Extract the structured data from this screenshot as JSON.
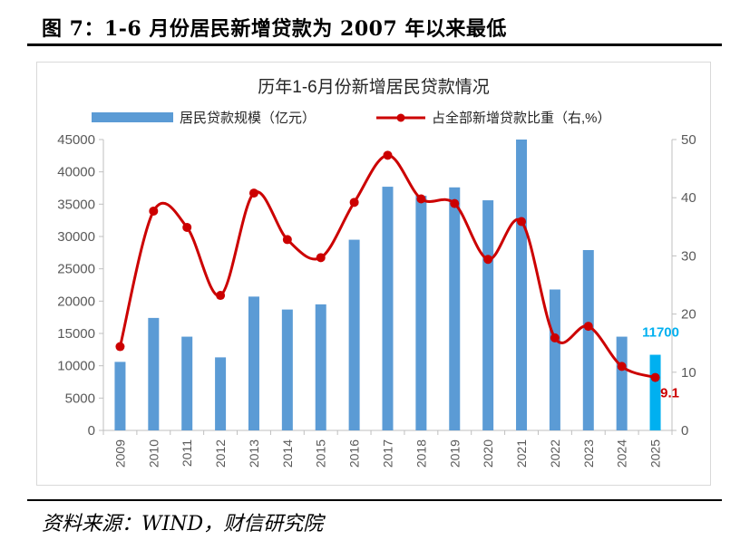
{
  "figure_title": "图 7：1-6 月份居民新增贷款为 2007 年以来最低",
  "source_text": "资料来源：WIND，财信研究院",
  "colors": {
    "bar": "#5b9bd5",
    "bar_highlight": "#00b0f0",
    "line": "#cc0000",
    "axis": "#595959"
  },
  "chart_data": {
    "type": "bar",
    "title": "历年1-6月份新增居民贷款情况",
    "categories": [
      "2009",
      "2010",
      "2011",
      "2012",
      "2013",
      "2014",
      "2015",
      "2016",
      "2017",
      "2018",
      "2019",
      "2020",
      "2021",
      "2022",
      "2023",
      "2024",
      "2025"
    ],
    "series": [
      {
        "name": "居民贷款规模（亿元）",
        "type": "bar",
        "axis": "left",
        "values": [
          10600,
          17400,
          14500,
          11300,
          20700,
          18700,
          19500,
          29500,
          37700,
          36300,
          37600,
          35600,
          45000,
          21800,
          27900,
          14500,
          11700
        ]
      },
      {
        "name": "占全部新增贷款比重（右,%）",
        "type": "line",
        "axis": "right",
        "values": [
          14.4,
          37.7,
          34.9,
          23.2,
          40.8,
          32.8,
          29.7,
          39.2,
          47.3,
          39.8,
          39.0,
          29.4,
          35.9,
          15.9,
          17.9,
          11.0,
          9.1
        ]
      }
    ],
    "y_left": {
      "ylim": [
        0,
        45000
      ],
      "ticks": [
        "0",
        "5000",
        "10000",
        "15000",
        "20000",
        "25000",
        "30000",
        "35000",
        "40000",
        "45000"
      ]
    },
    "y_right": {
      "ylim": [
        0,
        50
      ],
      "ticks": [
        "0",
        "10",
        "20",
        "30",
        "40",
        "50"
      ]
    },
    "annotations": [
      {
        "text": "11700",
        "series": "bar",
        "index": 16
      },
      {
        "text": "9.1",
        "series": "line",
        "index": 16
      }
    ],
    "legend_position": "top",
    "grid": false
  }
}
